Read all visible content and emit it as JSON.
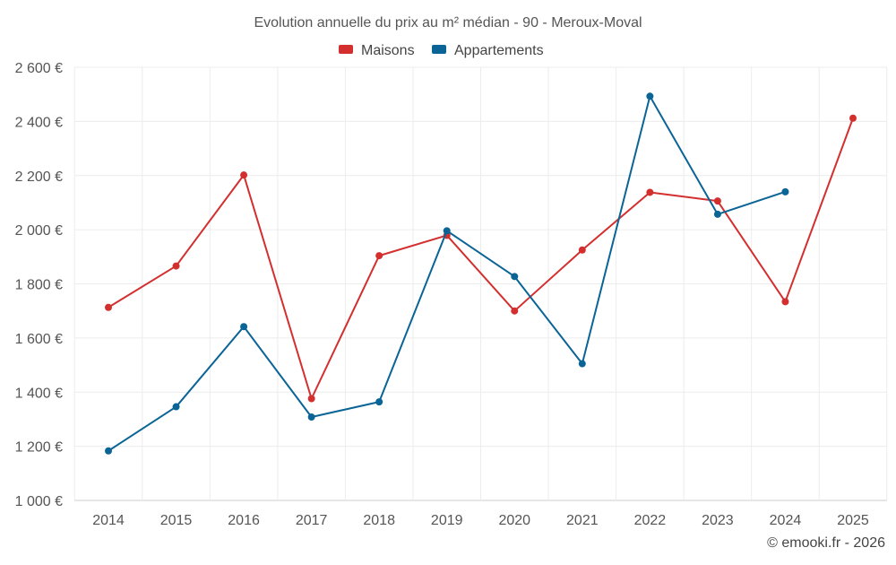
{
  "chart_data": {
    "type": "line",
    "title": "Evolution annuelle du prix au m² médian - 90 - Meroux-Moval",
    "categories": [
      "2014",
      "2015",
      "2016",
      "2017",
      "2018",
      "2019",
      "2020",
      "2021",
      "2022",
      "2023",
      "2024",
      "2025"
    ],
    "series": [
      {
        "name": "Maisons",
        "color": "#d32f2f",
        "values": [
          1713,
          1866,
          2202,
          1376,
          1904,
          1979,
          1700,
          1925,
          2138,
          2106,
          1734,
          2412
        ]
      },
      {
        "name": "Appartements",
        "color": "#0a6496",
        "values": [
          1183,
          1346,
          1642,
          1308,
          1364,
          1996,
          1827,
          1505,
          2493,
          2057,
          2140,
          null
        ]
      }
    ],
    "ylim": [
      1000,
      2600
    ],
    "yticks": [
      {
        "value": 1000,
        "label": "1 000 €"
      },
      {
        "value": 1200,
        "label": "1 200 €"
      },
      {
        "value": 1400,
        "label": "1 400 €"
      },
      {
        "value": 1600,
        "label": "1 600 €"
      },
      {
        "value": 1800,
        "label": "1 800 €"
      },
      {
        "value": 2000,
        "label": "2 000 €"
      },
      {
        "value": 2200,
        "label": "2 200 €"
      },
      {
        "value": 2400,
        "label": "2 400 €"
      },
      {
        "value": 2600,
        "label": "2 600 €"
      }
    ],
    "xlabel": "",
    "ylabel": "",
    "grid": true,
    "legend_position": "top-center"
  },
  "credit": "© emooki.fr - 2026"
}
